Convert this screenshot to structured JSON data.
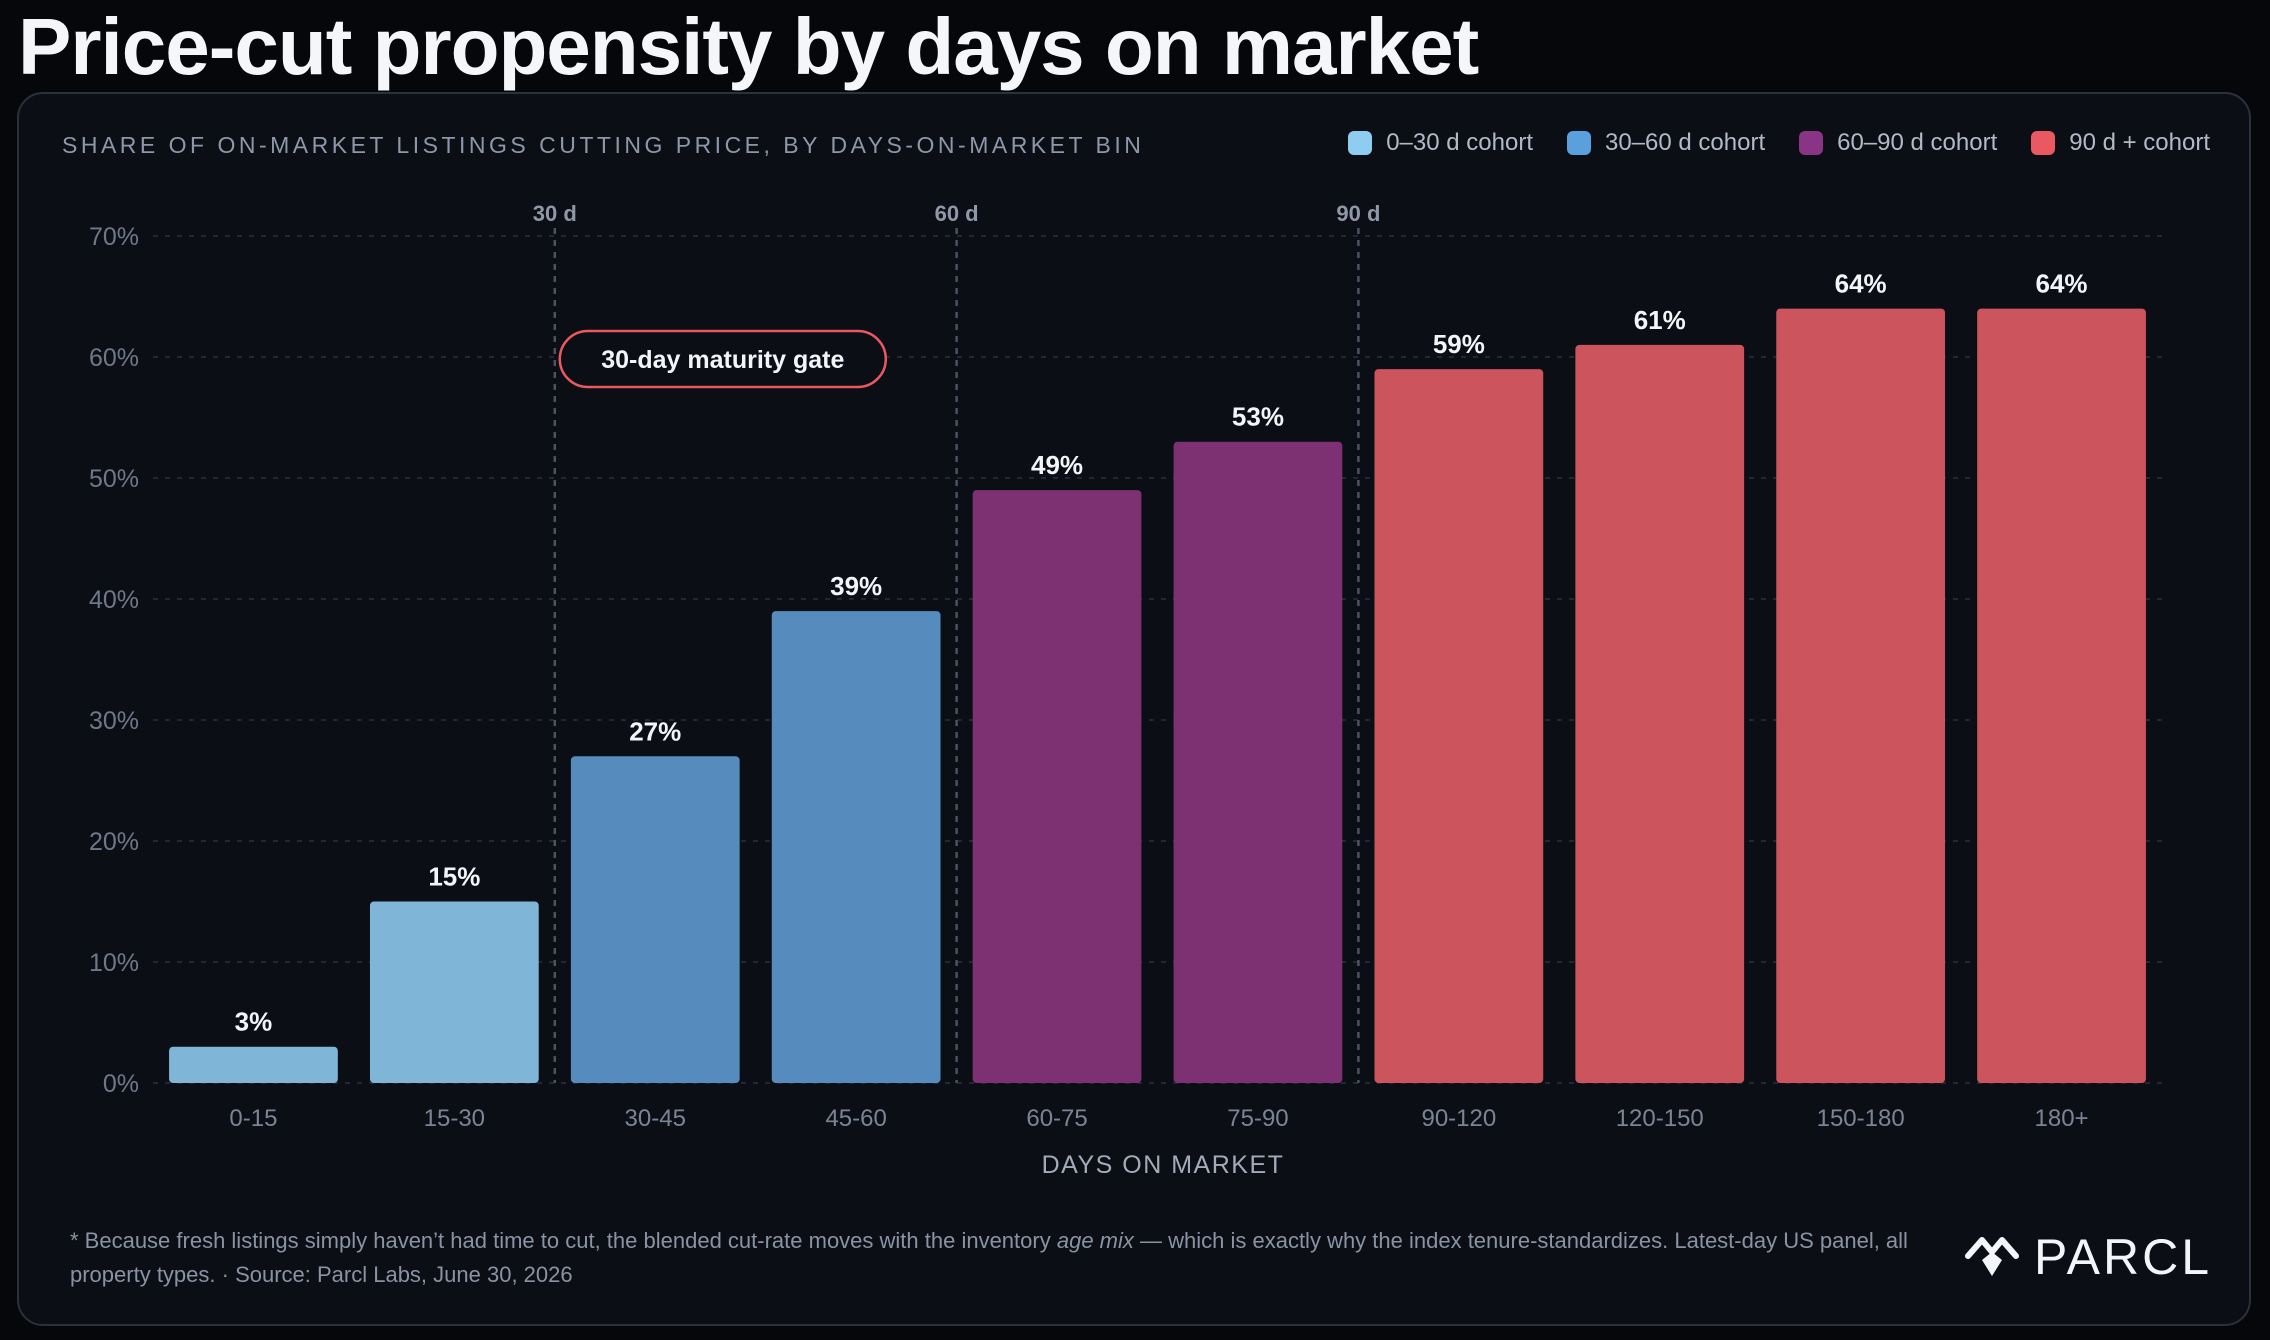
{
  "title": "Price-cut propensity by days on market",
  "subtitle": "SHARE OF ON-MARKET LISTINGS CUTTING PRICE, BY DAYS-ON-MARKET BIN",
  "legend": [
    {
      "label": "0–30 d cohort",
      "color": "#8ecdf0"
    },
    {
      "label": "30–60 d cohort",
      "color": "#5aa0dc"
    },
    {
      "label": "60–90 d cohort",
      "color": "#8a3486"
    },
    {
      "label": "90 d + cohort",
      "color": "#ea5962"
    }
  ],
  "chart_data": {
    "type": "bar",
    "categories": [
      "0-15",
      "15-30",
      "30-45",
      "45-60",
      "60-75",
      "75-90",
      "90-120",
      "120-150",
      "150-180",
      "180+"
    ],
    "values": [
      3,
      15,
      27,
      39,
      49,
      53,
      59,
      61,
      64,
      64
    ],
    "value_labels": [
      "3%",
      "15%",
      "27%",
      "39%",
      "49%",
      "53%",
      "59%",
      "61%",
      "64%",
      "64%"
    ],
    "bar_colors": [
      "#7fb5d6",
      "#7fb5d6",
      "#568cbd",
      "#568cbd",
      "#7e3172",
      "#7e3172",
      "#cc545d",
      "#cc545d",
      "#cc545d",
      "#cc545d"
    ],
    "xlabel": "DAYS ON MARKET",
    "ylabel": "",
    "ylim": [
      0,
      70
    ],
    "yticks": [
      0,
      10,
      20,
      30,
      40,
      50,
      60,
      70
    ],
    "ytick_labels": [
      "0%",
      "10%",
      "20%",
      "30%",
      "40%",
      "50%",
      "60%",
      "70%"
    ],
    "grid": true,
    "legend_position": "top-right",
    "reference_lines": [
      {
        "after_category_index": 1,
        "label": "30 d"
      },
      {
        "after_category_index": 3,
        "label": "60 d"
      },
      {
        "after_category_index": 5,
        "label": "90 d"
      }
    ],
    "annotation": {
      "text": "30-day maturity gate",
      "color": "#ea5962"
    }
  },
  "footnote": {
    "part1": "* Because fresh listings simply haven’t had time to cut, the blended cut-rate moves with the inventory ",
    "italic": "age mix",
    "part2": " — which is exactly why the index tenure-standardizes. Latest-day US panel, all property types. · Source: Parcl Labs, June 30, 2026"
  },
  "logo": {
    "text": "PARCL",
    "icon": "parcl-logo-icon"
  }
}
